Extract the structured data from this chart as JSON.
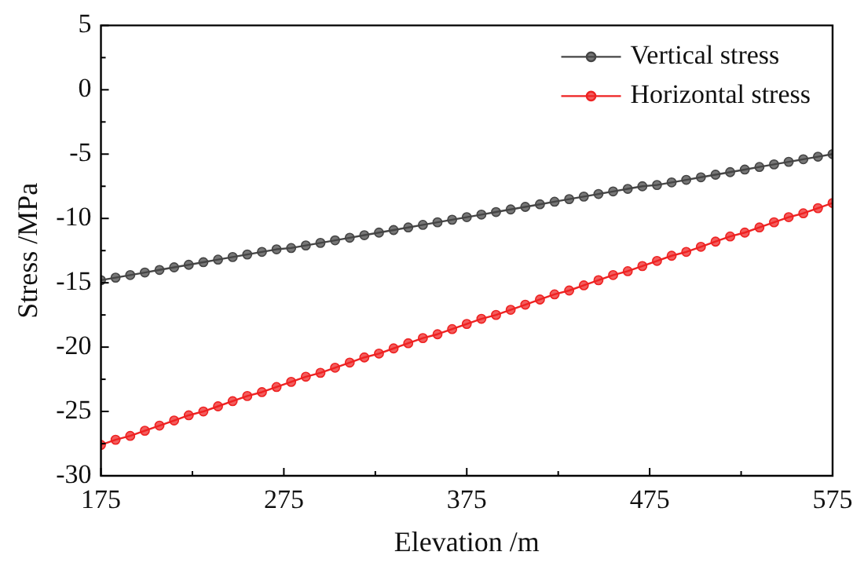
{
  "chart_data": {
    "type": "line",
    "xlabel": "Elevation /m",
    "ylabel": "Stress /MPa",
    "x": [
      175,
      183,
      191,
      199,
      207,
      215,
      223,
      231,
      239,
      247,
      255,
      263,
      271,
      279,
      287,
      295,
      303,
      311,
      319,
      327,
      335,
      343,
      351,
      359,
      367,
      375,
      383,
      391,
      399,
      407,
      415,
      423,
      431,
      439,
      447,
      455,
      463,
      471,
      479,
      487,
      495,
      503,
      511,
      519,
      527,
      535,
      543,
      551,
      559,
      567,
      575
    ],
    "series": [
      {
        "name": "Vertical stress",
        "color": "#454545",
        "values": [
          -14.8,
          -14.6,
          -14.4,
          -14.2,
          -14.0,
          -13.8,
          -13.6,
          -13.4,
          -13.2,
          -13.0,
          -12.8,
          -12.6,
          -12.4,
          -12.3,
          -12.1,
          -11.9,
          -11.7,
          -11.5,
          -11.3,
          -11.1,
          -10.9,
          -10.7,
          -10.5,
          -10.3,
          -10.1,
          -9.9,
          -9.7,
          -9.5,
          -9.3,
          -9.1,
          -8.9,
          -8.7,
          -8.5,
          -8.3,
          -8.1,
          -7.9,
          -7.7,
          -7.5,
          -7.4,
          -7.2,
          -7.0,
          -6.8,
          -6.6,
          -6.4,
          -6.2,
          -6.0,
          -5.8,
          -5.6,
          -5.4,
          -5.2,
          -5.0
        ]
      },
      {
        "name": "Horizontal stress",
        "color": "#ee2222",
        "values": [
          -27.6,
          -27.2,
          -26.9,
          -26.5,
          -26.1,
          -25.7,
          -25.3,
          -25.0,
          -24.6,
          -24.2,
          -23.8,
          -23.5,
          -23.1,
          -22.7,
          -22.3,
          -22.0,
          -21.6,
          -21.2,
          -20.8,
          -20.5,
          -20.1,
          -19.7,
          -19.3,
          -19.0,
          -18.6,
          -18.2,
          -17.8,
          -17.5,
          -17.1,
          -16.7,
          -16.3,
          -15.9,
          -15.6,
          -15.2,
          -14.8,
          -14.4,
          -14.1,
          -13.7,
          -13.3,
          -12.9,
          -12.6,
          -12.2,
          -11.8,
          -11.4,
          -11.1,
          -10.7,
          -10.3,
          -9.9,
          -9.6,
          -9.2,
          -8.8
        ]
      }
    ],
    "xlim": [
      175,
      575
    ],
    "xticks": [
      175,
      {
        "value": 225,
        "label": null
      },
      275,
      {
        "value": 325,
        "label": null
      },
      375,
      {
        "value": 425,
        "label": null
      },
      475,
      {
        "value": 525,
        "label": null
      },
      575
    ],
    "ylim": [
      -30,
      5
    ],
    "yticks": [
      -30,
      {
        "value": -27.5,
        "label": null
      },
      -25,
      {
        "value": -22.5,
        "label": null
      },
      -20,
      {
        "value": -17.5,
        "label": null
      },
      -15,
      {
        "value": -12.5,
        "label": null
      },
      -10,
      {
        "value": -7.5,
        "label": null
      },
      -5,
      {
        "value": -2.5,
        "label": null
      },
      0,
      {
        "value": 2.5,
        "label": null
      },
      5
    ],
    "legend": "top right",
    "marker": "circle",
    "line_style": "solid",
    "grid": false
  }
}
